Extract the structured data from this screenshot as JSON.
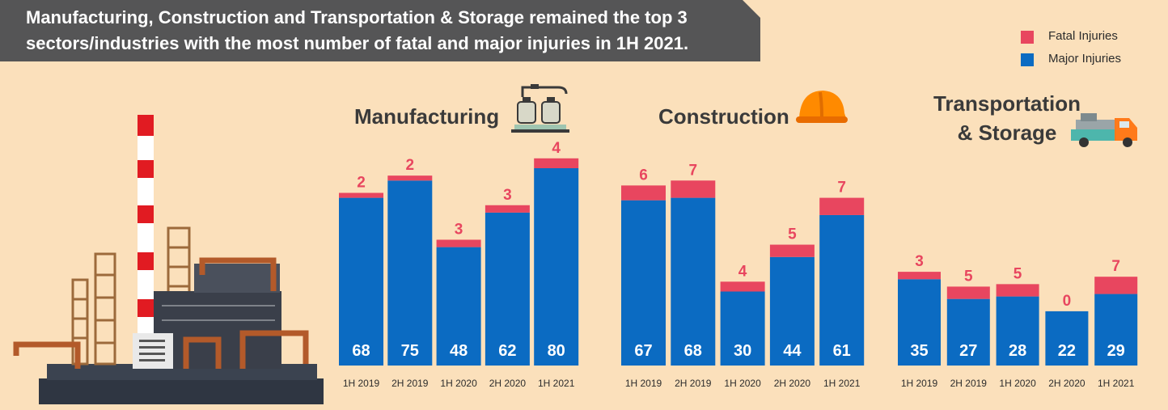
{
  "headline": "Manufacturing, Construction and Transportation & Storage remained the top 3 sectors/industries with the most number of fatal and major injuries in 1H 2021.",
  "legend": {
    "fatal": "Fatal Injuries",
    "major": "Major Injuries"
  },
  "colors": {
    "fatal": "#e8465f",
    "major": "#0b6bc2",
    "banner": "#555556",
    "background": "#fbe0bb"
  },
  "icons": [
    "factory-illustration",
    "bottling-machine-icon",
    "hard-hat-icon",
    "truck-icon"
  ],
  "sectors": {
    "manufacturing": {
      "title": "Manufacturing"
    },
    "construction": {
      "title": "Construction"
    },
    "transport": {
      "title_line1": "Transportation",
      "title_line2": "& Storage"
    }
  },
  "chart_data": [
    {
      "type": "bar",
      "stacked": true,
      "title": "Manufacturing",
      "categories": [
        "1H 2019",
        "2H 2019",
        "1H 2020",
        "2H 2020",
        "1H 2021"
      ],
      "series": [
        {
          "name": "Major Injuries",
          "values": [
            68,
            75,
            48,
            62,
            80
          ]
        },
        {
          "name": "Fatal Injuries",
          "values": [
            2,
            2,
            3,
            3,
            4
          ]
        }
      ]
    },
    {
      "type": "bar",
      "stacked": true,
      "title": "Construction",
      "categories": [
        "1H 2019",
        "2H 2019",
        "1H 2020",
        "2H 2020",
        "1H 2021"
      ],
      "series": [
        {
          "name": "Major Injuries",
          "values": [
            67,
            68,
            30,
            44,
            61
          ]
        },
        {
          "name": "Fatal Injuries",
          "values": [
            6,
            7,
            4,
            5,
            7
          ]
        }
      ]
    },
    {
      "type": "bar",
      "stacked": true,
      "title": "Transportation & Storage",
      "categories": [
        "1H 2019",
        "2H 2019",
        "1H 2020",
        "2H 2020",
        "1H 2021"
      ],
      "series": [
        {
          "name": "Major Injuries",
          "values": [
            35,
            27,
            28,
            22,
            29
          ]
        },
        {
          "name": "Fatal Injuries",
          "values": [
            3,
            5,
            5,
            0,
            7
          ]
        }
      ]
    }
  ]
}
